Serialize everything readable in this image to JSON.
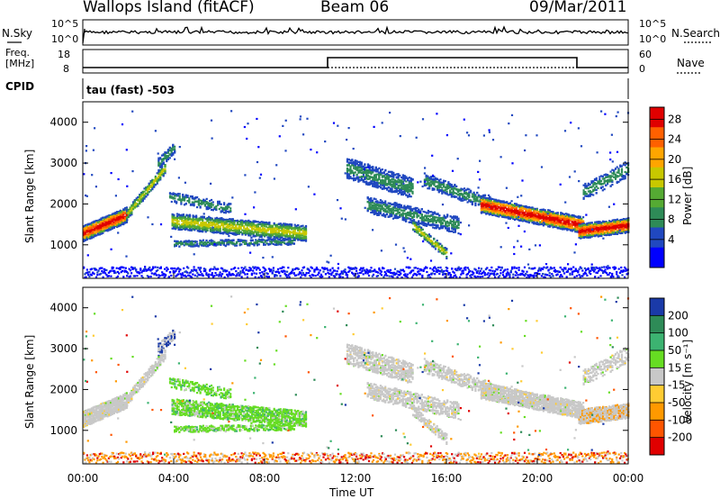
{
  "header": {
    "station": "Wallops Island (fitACF)",
    "beam": "Beam 06",
    "date": "09/Mar/2011"
  },
  "noise_panel": {
    "left_label": "N.Sky",
    "right_label": "N.Search",
    "scale_top": "10^5",
    "scale_bottom": "10^0"
  },
  "freq_panel": {
    "left_label_1": "Freq.",
    "left_label_2": "[MHz]",
    "right_label": "Nave",
    "left_ticks": [
      "18",
      "8"
    ],
    "right_ticks": [
      "60",
      "0"
    ]
  },
  "cpid_panel": {
    "label": "CPID",
    "text": "tau (fast) -503"
  },
  "chart_data": [
    {
      "type": "heatmap",
      "title": "Power",
      "ylabel": "Slant Range [km]",
      "ylim": [
        180,
        4500
      ],
      "yticks": [
        "4000",
        "3000",
        "2000",
        "1000"
      ],
      "colorbar_label": "Power [dB]",
      "colorbar_ticks": [
        "28",
        "24",
        "20",
        "16",
        "12",
        "8",
        "4"
      ],
      "colorbar_colors": [
        "#e00000",
        "#ff6000",
        "#ffa500",
        "#c8c800",
        "#55aa33",
        "#2e8b57",
        "#2048c0",
        "#0000ff"
      ]
    },
    {
      "type": "heatmap",
      "title": "Velocity",
      "ylabel": "Slant Range [km]",
      "ylim": [
        180,
        4500
      ],
      "yticks": [
        "4000",
        "3000",
        "2000",
        "1000"
      ],
      "xlabel": "Time UT",
      "xticks": [
        "00:00",
        "04:00",
        "08:00",
        "12:00",
        "16:00",
        "20:00",
        "00:00"
      ],
      "colorbar_label": "Velocity [m s⁻¹]",
      "colorbar_ticks": [
        "200",
        "100",
        "50",
        "15",
        "-15",
        "-50",
        "-100",
        "-200"
      ],
      "colorbar_colors": [
        "#1a3aa8",
        "#2e8b57",
        "#3cb371",
        "#66dd22",
        "#c8c8c8",
        "#ffcc33",
        "#ff9900",
        "#ff5500",
        "#e00000"
      ]
    }
  ]
}
